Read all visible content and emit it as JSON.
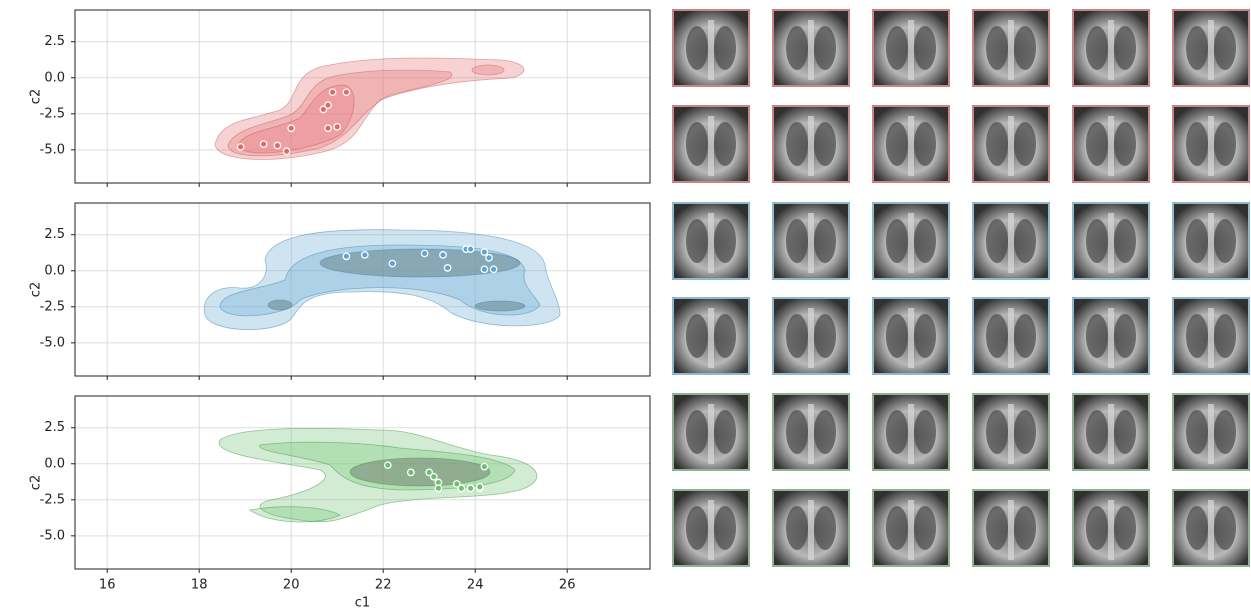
{
  "chart_data": [
    {
      "type": "scatter",
      "ylabel": "c2",
      "xlim": [
        15.3,
        27.8
      ],
      "ylim": [
        -7.3,
        4.7
      ],
      "yticks": [
        2.5,
        {
          "value": 0,
          "label": "0.0"
        },
        -2.5,
        {
          "value": -5,
          "label": "-5.0"
        }
      ],
      "grid": true,
      "series": [
        {
          "color": "#e0686c",
          "x": [
            18.9,
            19.4,
            19.7,
            19.9,
            20.0,
            20.7,
            20.8,
            20.9,
            21.2,
            20.8,
            21.0
          ],
          "values": [
            -4.8,
            -4.6,
            -4.7,
            -5.1,
            -3.5,
            -2.2,
            -1.9,
            -1.0,
            -1.0,
            -3.5,
            -3.4
          ]
        }
      ]
    },
    {
      "type": "scatter",
      "ylabel": "c2",
      "xlim": [
        15.3,
        27.8
      ],
      "ylim": [
        -7.3,
        4.7
      ],
      "yticks": [
        2.5,
        {
          "value": 0,
          "label": "0.0"
        },
        -2.5,
        {
          "value": -5,
          "label": "-5.0"
        }
      ],
      "grid": true,
      "series": [
        {
          "color": "#5aa5d6",
          "x": [
            21.2,
            21.6,
            22.2,
            22.9,
            23.3,
            23.4,
            23.8,
            23.9,
            24.2,
            24.3,
            24.2,
            24.4
          ],
          "values": [
            1.0,
            1.1,
            0.5,
            1.2,
            1.1,
            0.2,
            1.5,
            1.5,
            1.3,
            0.9,
            0.1,
            0.1
          ]
        }
      ]
    },
    {
      "type": "scatter",
      "ylabel": "c2",
      "xlabel": "c1",
      "xlim": [
        15.3,
        27.8
      ],
      "ylim": [
        -7.3,
        4.7
      ],
      "xticks": [
        16,
        18,
        20,
        22,
        24,
        26
      ],
      "yticks": [
        2.5,
        {
          "value": 0,
          "label": "0.0"
        },
        -2.5,
        {
          "value": -5,
          "label": "-5.0"
        }
      ],
      "grid": true,
      "series": [
        {
          "color": "#6cc070",
          "x": [
            22.1,
            22.6,
            23.0,
            23.1,
            23.2,
            23.2,
            23.6,
            23.7,
            23.9,
            24.1,
            24.2,
            24.1
          ],
          "values": [
            -0.1,
            -0.6,
            -0.6,
            -0.9,
            -1.3,
            -1.7,
            -1.4,
            -1.7,
            -1.7,
            -1.7,
            -0.2,
            -1.6
          ]
        }
      ]
    }
  ]
}
